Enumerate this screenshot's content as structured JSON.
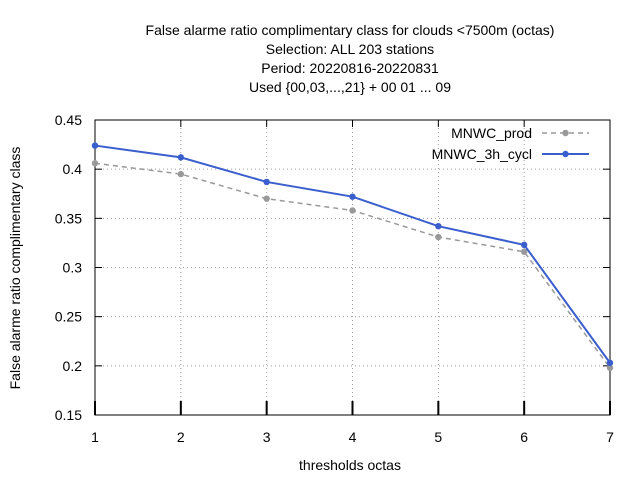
{
  "chart_data": {
    "type": "line",
    "title_lines": [
      "False alarme ratio complimentary class  for clouds <7500m (octas)",
      "Selection: ALL     203 stations",
      "Period: 20220816-20220831",
      "Used {00,03,...,21} + 00 01 ... 09"
    ],
    "xlabel": "thresholds octas",
    "ylabel": "False alarme ratio complimentary class",
    "x": [
      1,
      2,
      3,
      4,
      5,
      6,
      7
    ],
    "x_tick_labels": [
      "1",
      "2",
      "3",
      "4",
      "5",
      "6",
      "7"
    ],
    "y_tick_labels": [
      "0.15",
      "0.2",
      "0.25",
      "0.3",
      "0.35",
      "0.4",
      "0.45"
    ],
    "y_ticks": [
      0.15,
      0.2,
      0.25,
      0.3,
      0.35,
      0.4,
      0.45
    ],
    "xlim": [
      1,
      7
    ],
    "ylim": [
      0.15,
      0.45
    ],
    "grid": true,
    "legend_position": "top-right",
    "series": [
      {
        "name": "MNWC_prod",
        "values": [
          0.406,
          0.395,
          0.37,
          0.358,
          0.331,
          0.316,
          0.198
        ],
        "color": "#999999",
        "line_style": "dashed"
      },
      {
        "name": "MNWC_3h_cycl",
        "values": [
          0.424,
          0.412,
          0.387,
          0.372,
          0.342,
          0.323,
          0.203
        ],
        "color": "#3a5fcd",
        "line_style": "solid"
      }
    ]
  }
}
